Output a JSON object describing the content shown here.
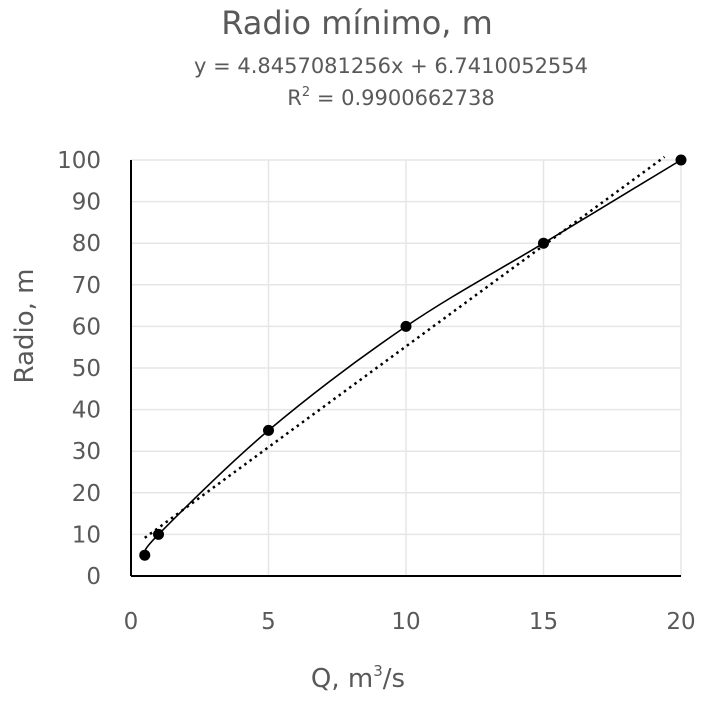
{
  "chart_data": {
    "type": "scatter",
    "title": "Radio mínimo, m",
    "trendline": {
      "type": "linear",
      "equation": "y = 4.8457081256x + 6.7410052554",
      "slope": 4.8457081256,
      "intercept": 6.7410052554,
      "r2_label": "R",
      "r2_sup": "2",
      "r2_value": " = 0.9900662738",
      "style": "dotted",
      "x_range": [
        0.5,
        19.4
      ]
    },
    "x_label": {
      "prefix": "Q, m",
      "sup": "3",
      "suffix": "/s"
    },
    "ylabel": "Radio, m",
    "xlim": [
      0,
      20
    ],
    "ylim": [
      0,
      100
    ],
    "x_ticks": [
      0,
      5,
      10,
      15,
      20
    ],
    "y_ticks": [
      0,
      10,
      20,
      30,
      40,
      50,
      60,
      70,
      80,
      90,
      100
    ],
    "grid": true,
    "series": [
      {
        "x": [
          0.5,
          1,
          5,
          10,
          15,
          20
        ],
        "y": [
          5,
          10,
          35,
          60,
          80,
          100
        ],
        "line": "smooth",
        "marker": "circle",
        "color": "#000000"
      }
    ]
  }
}
